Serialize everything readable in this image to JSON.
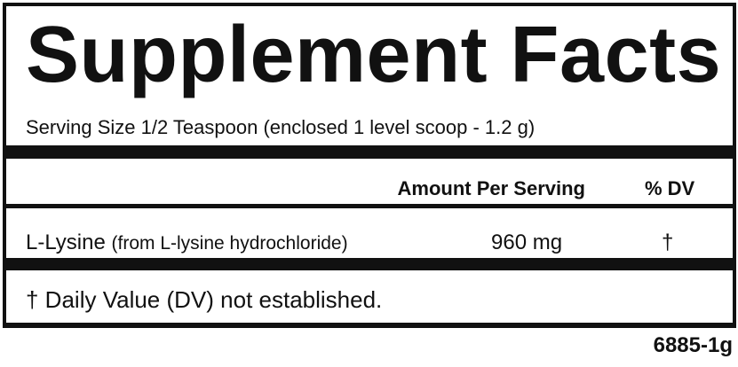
{
  "label": {
    "title": "Supplement Facts",
    "serving_size": "Serving Size 1/2 Teaspoon (enclosed 1 level scoop - 1.2 g)",
    "header": {
      "amount": "Amount Per Serving",
      "dv": "% DV"
    },
    "rows": [
      {
        "name": "L-Lysine",
        "source": "(from L-lysine hydrochloride)",
        "amount": "960 mg",
        "dv": "†"
      }
    ],
    "footnote": "† Daily Value (DV) not established.",
    "code": "6885-1g"
  }
}
